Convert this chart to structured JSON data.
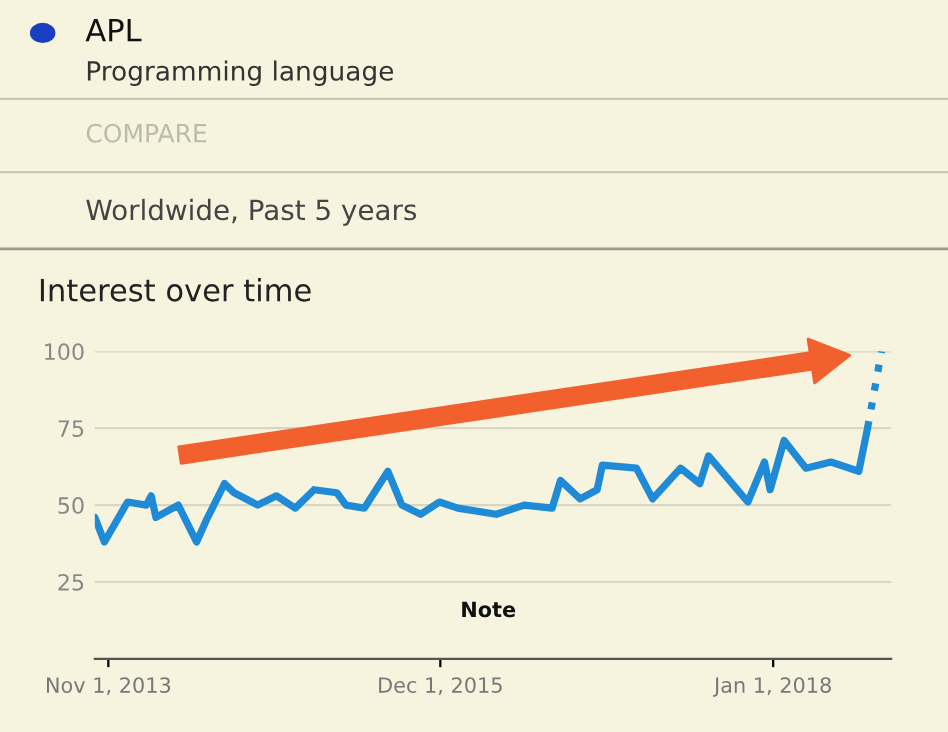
{
  "chart_data": {
    "type": "line",
    "title": "Interest over time",
    "subtitle": "Worldwide, Past 5 years",
    "annotations": [
      "APL",
      "Programming language",
      "COMPARE",
      "Note"
    ],
    "xlim": [
      "2013-10-01",
      "2018-09-28"
    ],
    "xticks": [
      {
        "value": "2013-11-01",
        "label": "Nov 1, 2013"
      },
      {
        "value": "2015-12-01",
        "label": "Dec 1, 2015"
      },
      {
        "value": "2018-01-01",
        "label": "Jan 1, 2018"
      }
    ],
    "ylim": [
      0,
      100
    ],
    "yticks": [
      25,
      50,
      75,
      100
    ],
    "grid": "y",
    "series": [
      {
        "color": "#1f8ad6",
        "line_style": "solid",
        "x": [
          "2013-10-01",
          "2013-10-23",
          "2013-12-15",
          "2014-01-27",
          "2014-02-07",
          "2014-02-18",
          "2014-04-10",
          "2014-05-22",
          "2014-06-13",
          "2014-07-25",
          "2014-08-16",
          "2014-10-09",
          "2014-11-21",
          "2015-01-03",
          "2015-02-15",
          "2015-04-08",
          "2015-04-29",
          "2015-06-10",
          "2015-08-03",
          "2015-09-04",
          "2015-10-17",
          "2015-11-29",
          "2016-01-10",
          "2016-04-07",
          "2016-06-10",
          "2016-08-13",
          "2016-09-01",
          "2016-10-16",
          "2016-11-24",
          "2016-12-06",
          "2017-02-22",
          "2017-03-31",
          "2017-06-03",
          "2017-07-17",
          "2017-08-06",
          "2017-11-04",
          "2017-12-12",
          "2017-12-25",
          "2018-01-26",
          "2018-03-17",
          "2018-05-13",
          "2018-07-16",
          "2018-08-05"
        ],
        "values": [
          46,
          38,
          51,
          50,
          53,
          46,
          50,
          38,
          45,
          57,
          54,
          50,
          53,
          49,
          55,
          54,
          50,
          49,
          61,
          50,
          47,
          51,
          49,
          47,
          50,
          49,
          58,
          52,
          55,
          63,
          62,
          52,
          62,
          57,
          66,
          51,
          64,
          55,
          71,
          62,
          64,
          61,
          75
        ]
      },
      {
        "color": "#1f8ad6",
        "line_style": "dotted",
        "x": [
          "2018-08-05",
          "2018-09-06"
        ],
        "values": [
          75,
          100
        ]
      }
    ]
  }
}
